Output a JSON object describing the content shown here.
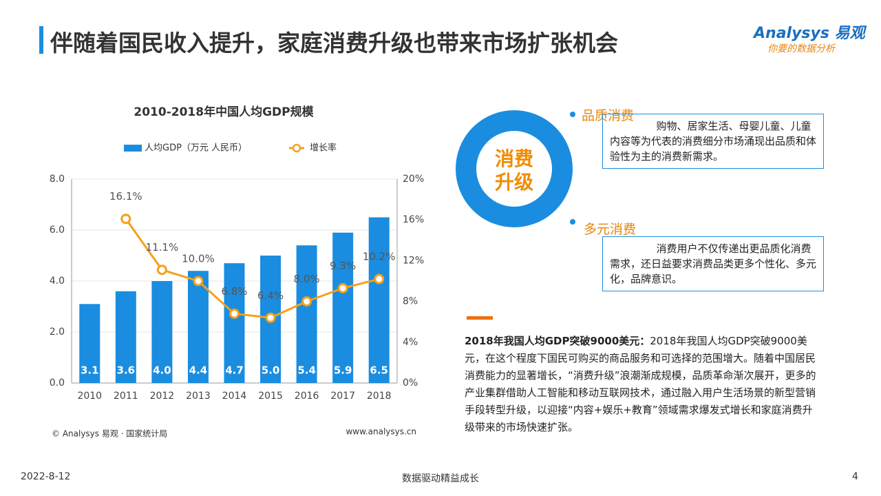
{
  "header": {
    "title": "伴随着国民收入提升，家庭消费升级也带来市场扩张机会",
    "logo": "Analysys 易观",
    "slogan": "你要的数据分析"
  },
  "chart_data": {
    "type": "bar",
    "title": "2010-2018年中国人均GDP规模",
    "categories": [
      "2010",
      "2011",
      "2012",
      "2013",
      "2014",
      "2015",
      "2016",
      "2017",
      "2018"
    ],
    "series": [
      {
        "name": "人均GDP（万元 人民币）",
        "type": "bar",
        "color": "#1a8de0",
        "values": [
          3.1,
          3.6,
          4.0,
          4.4,
          4.7,
          5.0,
          5.4,
          5.9,
          6.5
        ],
        "value_labels": [
          "3.1",
          "3.6",
          "4.0",
          "4.4",
          "4.7",
          "5.0",
          "5.4",
          "5.9",
          "6.5"
        ]
      },
      {
        "name": "增长率",
        "type": "line",
        "axis": "y2",
        "color": "#f5a01a",
        "values": [
          null,
          16.1,
          11.1,
          10.0,
          6.8,
          6.4,
          8.0,
          9.3,
          10.2
        ],
        "value_labels": [
          null,
          "16.1%",
          "11.1%",
          "10.0%",
          "6.8%",
          "6.4%",
          "8.0%",
          "9.3%",
          "10.2%"
        ]
      }
    ],
    "ylim": [
      0,
      8
    ],
    "yticks": [
      {
        "value": 0,
        "label": "0.0"
      },
      {
        "value": 2,
        "label": "2.0"
      },
      {
        "value": 4,
        "label": "4.0"
      },
      {
        "value": 6,
        "label": "6.0"
      },
      {
        "value": 8,
        "label": "8.0"
      }
    ],
    "y2lim": [
      0,
      20
    ],
    "y2ticks": [
      {
        "value": 0,
        "label": "0%"
      },
      {
        "value": 4,
        "label": "4%"
      },
      {
        "value": 8,
        "label": "8%"
      },
      {
        "value": 12,
        "label": "12%"
      },
      {
        "value": 16,
        "label": "16%"
      },
      {
        "value": 20,
        "label": "20%"
      }
    ],
    "grid": true,
    "source": "© Analysys 易观 · 国家统计局",
    "url": "www.analysys.cn"
  },
  "diagram": {
    "center": [
      "消费",
      "升级"
    ],
    "items": [
      {
        "label": "品质消费",
        "text": "购物、居家生活、母婴儿童、儿童内容等为代表的消费细分市场涌现出品质和体验性为主的消费新需求。"
      },
      {
        "label": "多元消费",
        "text": "消费用户不仅传递出更品质化消费需求，还日益要求消费品类更多个性化、多元化，品牌意识。"
      }
    ]
  },
  "text": {
    "lead": "2018年我国人均GDP突破9000美元：",
    "body": "2018年我国人均GDP突破9000美元，在这个程度下国民可购买的商品服务和可选择的范围增大。随着中国居民消费能力的显著增长，“消费升级”浪潮渐成规模，品质革命渐次展开，更多的产业集群借助人工智能和移动互联网技术，通过融入用户生活场景的新型营销手段转型升级，以迎接“内容+娱乐+教育”领域需求爆发式增长和家庭消费升级带来的市场快速扩张。"
  },
  "footer": {
    "date": "2022-8-12",
    "center": "数据驱动精益成长",
    "page": "4"
  }
}
